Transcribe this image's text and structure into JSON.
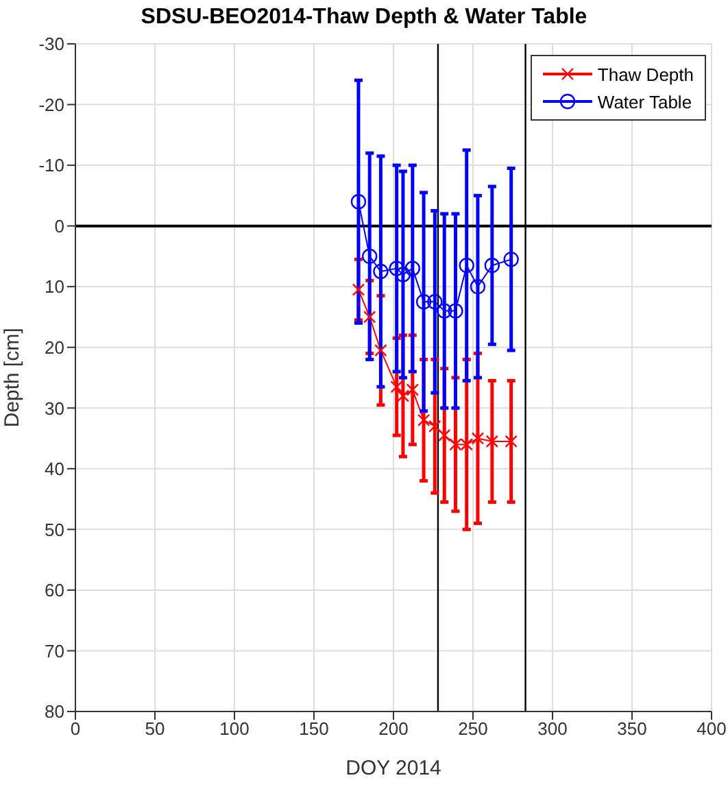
{
  "chart_data": {
    "type": "line",
    "title": "SDSU-BEO2014-Thaw Depth & Water Table",
    "xlabel": "DOY 2014",
    "ylabel": "Depth [cm]",
    "x": [
      178,
      185,
      192,
      202,
      206,
      212,
      219,
      226,
      232,
      239,
      246,
      253,
      262,
      274
    ],
    "series": [
      {
        "name": "Thaw Depth",
        "color": "#ff0000",
        "marker": "cross",
        "values": [
          10.5,
          15,
          20.5,
          26.5,
          28,
          27,
          32,
          33,
          34.5,
          36,
          36,
          35,
          35.5,
          35.5
        ],
        "errors": [
          5,
          6,
          9,
          8,
          10,
          9,
          10,
          11,
          11,
          11,
          14,
          14,
          10,
          10
        ]
      },
      {
        "name": "Water Table",
        "color": "#0000ff",
        "marker": "circle",
        "values": [
          -4,
          5,
          7.5,
          7,
          8,
          7,
          12.5,
          12.5,
          14,
          14,
          6.5,
          10,
          6.5,
          5.5
        ],
        "errors": [
          20,
          17,
          19,
          17,
          17,
          17,
          18,
          15,
          16,
          16,
          19,
          15,
          13,
          15
        ]
      }
    ],
    "xlim": [
      0,
      400
    ],
    "xticks": [
      0,
      50,
      100,
      150,
      200,
      250,
      300,
      350,
      400
    ],
    "ylim": [
      80,
      -30
    ],
    "yticks": [
      -30,
      -20,
      -10,
      0,
      10,
      20,
      30,
      40,
      50,
      60,
      70,
      80
    ],
    "ref_lines": [
      {
        "axis": "y",
        "value": 0,
        "color": "#000000"
      },
      {
        "axis": "x",
        "value": 228,
        "color": "#000000"
      },
      {
        "axis": "x",
        "value": 283,
        "color": "#000000"
      }
    ],
    "grid": true,
    "legend": "top right",
    "line_style": "solid"
  }
}
